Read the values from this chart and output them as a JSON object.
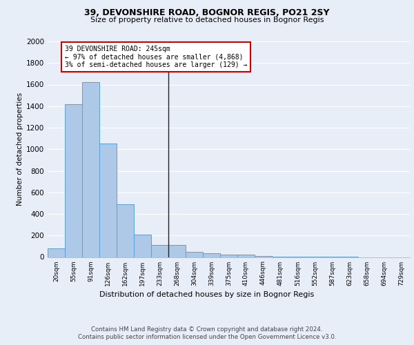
{
  "title": "39, DEVONSHIRE ROAD, BOGNOR REGIS, PO21 2SY",
  "subtitle": "Size of property relative to detached houses in Bognor Regis",
  "xlabel": "Distribution of detached houses by size in Bognor Regis",
  "ylabel": "Number of detached properties",
  "footer_line1": "Contains HM Land Registry data © Crown copyright and database right 2024.",
  "footer_line2": "Contains public sector information licensed under the Open Government Licence v3.0.",
  "bin_labels": [
    "20sqm",
    "55sqm",
    "91sqm",
    "126sqm",
    "162sqm",
    "197sqm",
    "233sqm",
    "268sqm",
    "304sqm",
    "339sqm",
    "375sqm",
    "410sqm",
    "446sqm",
    "481sqm",
    "516sqm",
    "552sqm",
    "587sqm",
    "623sqm",
    "658sqm",
    "694sqm",
    "729sqm"
  ],
  "bar_values": [
    80,
    1420,
    1620,
    1050,
    490,
    210,
    110,
    110,
    50,
    35,
    25,
    20,
    10,
    5,
    3,
    2,
    1,
    1,
    0,
    0,
    0
  ],
  "bar_color": "#aec9e8",
  "bar_edge_color": "#5a9fd4",
  "property_bin_index": 6.5,
  "annotation_title": "39 DEVONSHIRE ROAD: 245sqm",
  "annotation_line2": "← 97% of detached houses are smaller (4,868)",
  "annotation_line3": "3% of semi-detached houses are larger (129) →",
  "annotation_box_color": "#cc0000",
  "ylim": [
    0,
    2000
  ],
  "yticks": [
    0,
    200,
    400,
    600,
    800,
    1000,
    1200,
    1400,
    1600,
    1800,
    2000
  ],
  "bg_color": "#e8eef8",
  "plot_bg_color": "#e8eef8",
  "grid_color": "#ffffff",
  "vline_color": "#222222",
  "title_fontsize": 9,
  "subtitle_fontsize": 8
}
